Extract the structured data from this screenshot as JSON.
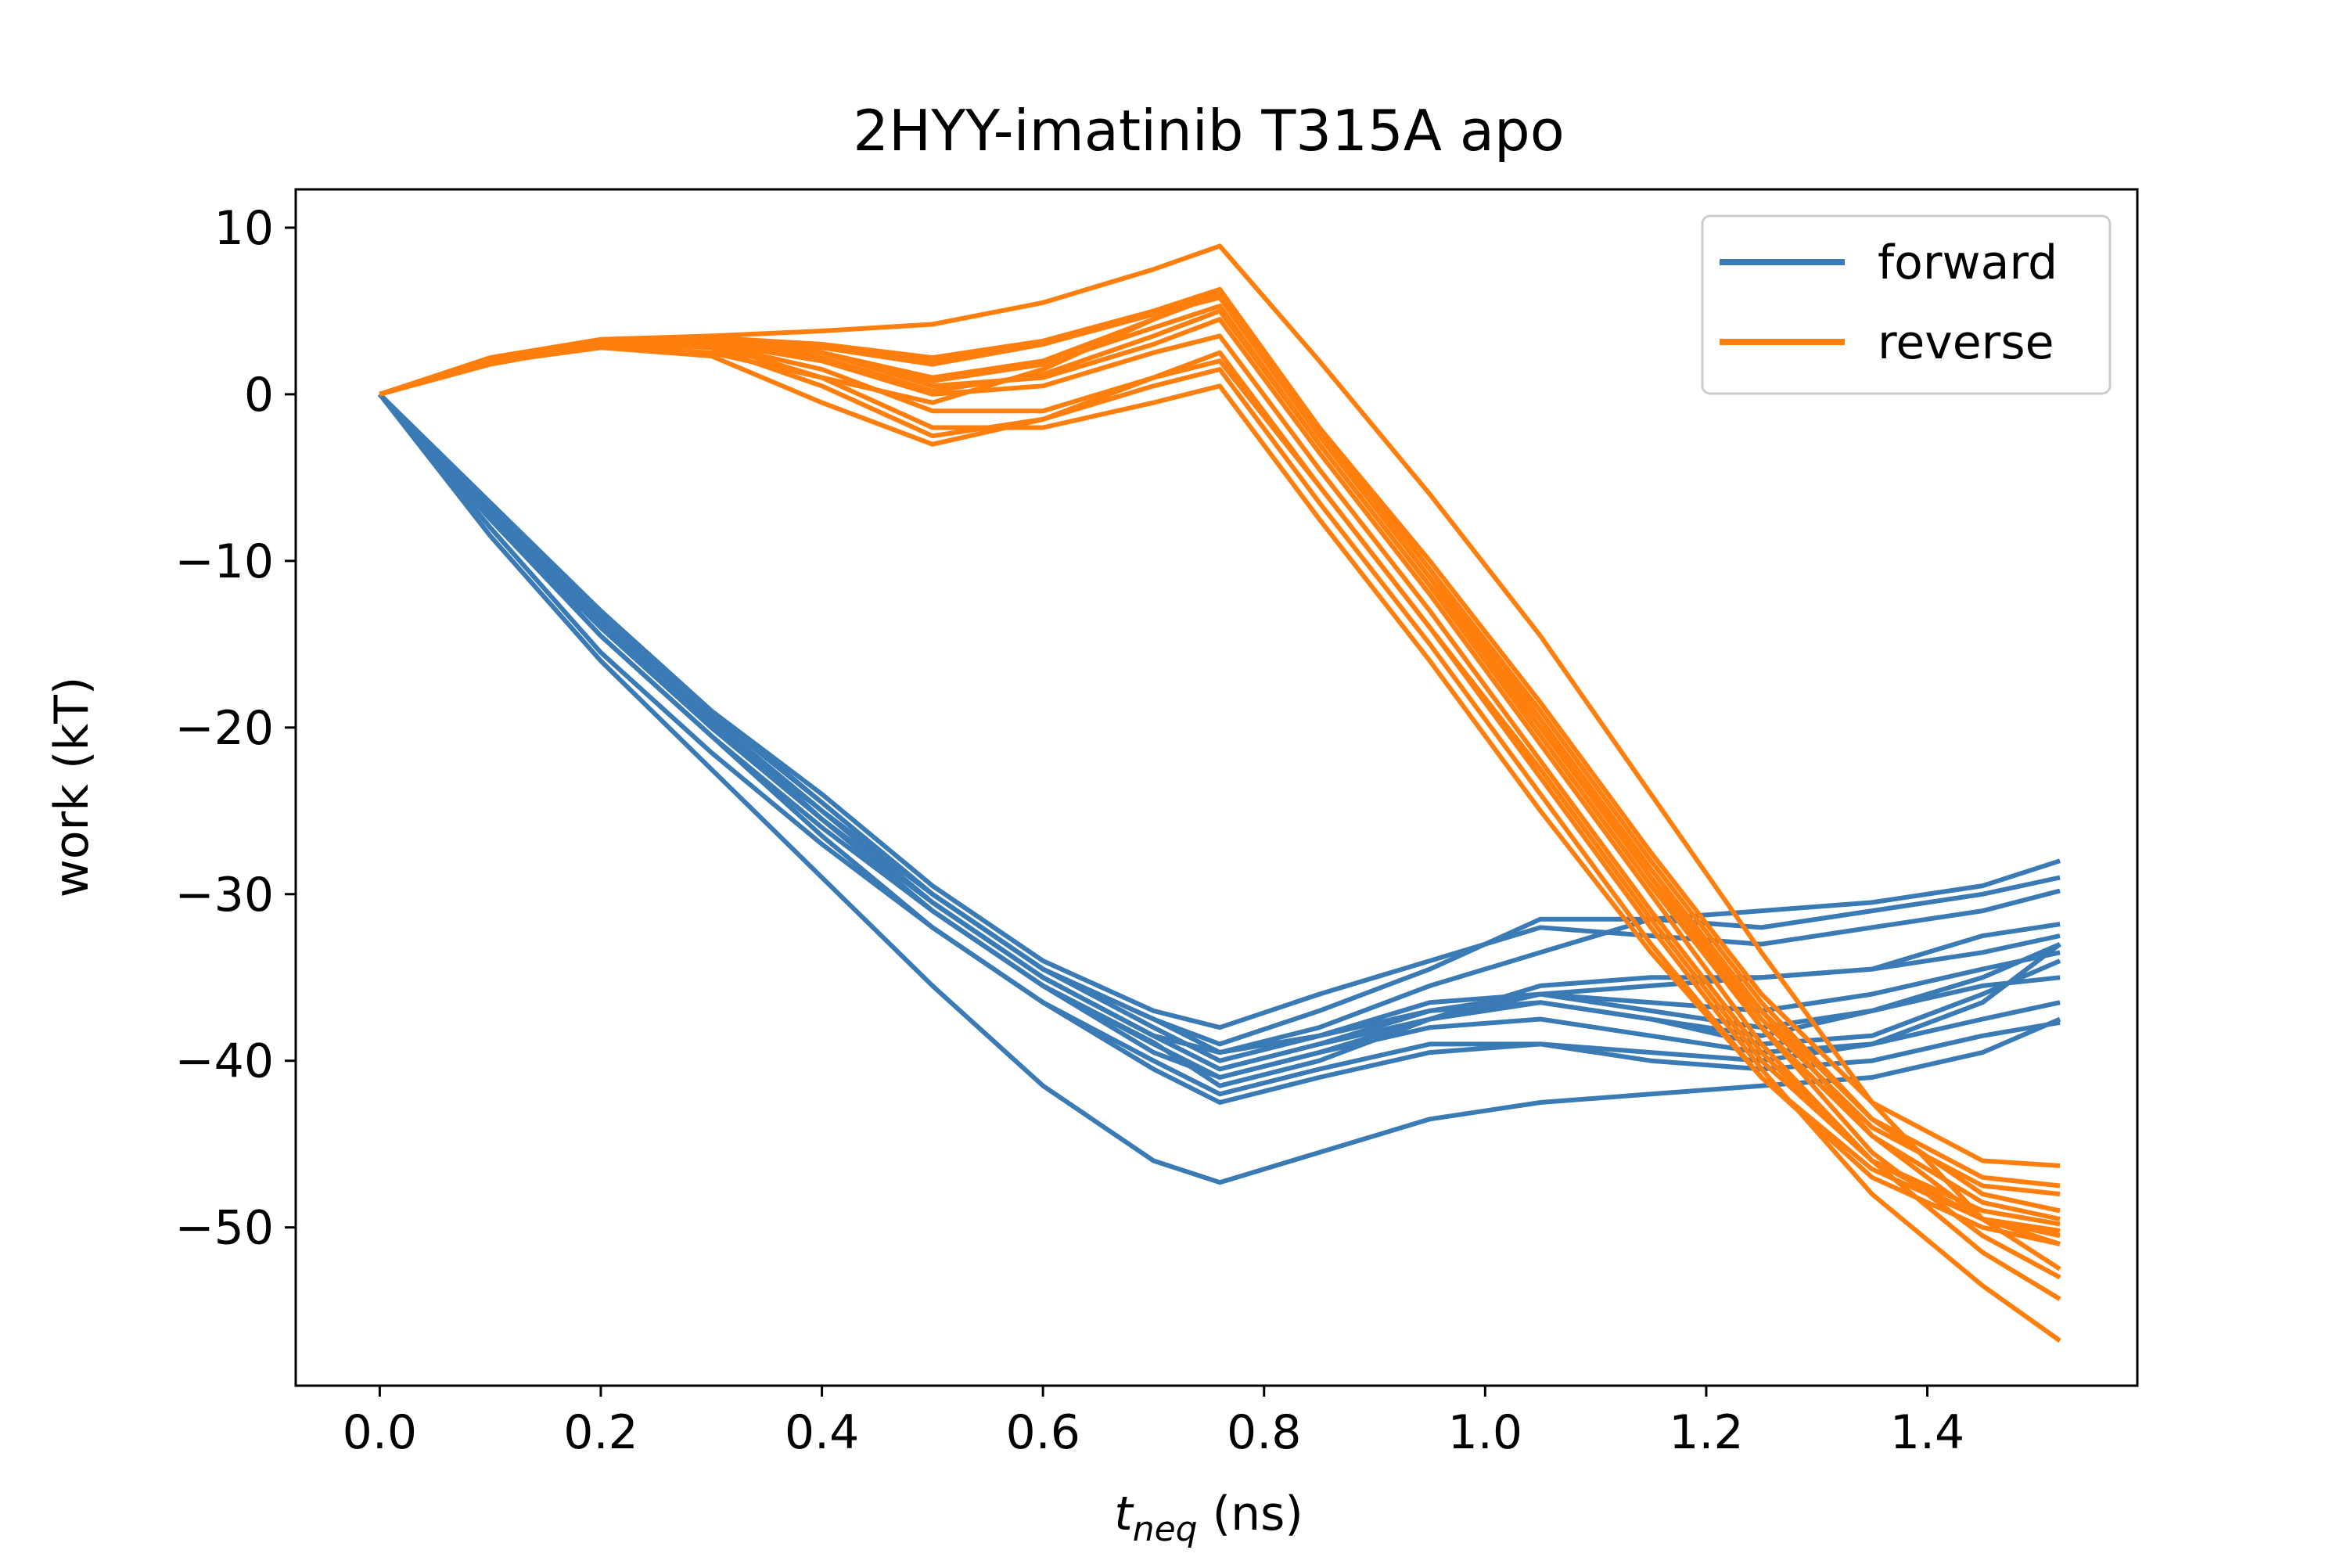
{
  "chart_data": {
    "type": "line",
    "title": "2HYY-imatinib T315A apo",
    "xlabel_main": "t",
    "xlabel_sub": "neq",
    "xlabel_suffix": " (ns)",
    "ylabel": "work (kT)",
    "xlim": [
      -0.076,
      1.59
    ],
    "ylim": [
      -59.5,
      12.3
    ],
    "xticks": [
      0.0,
      0.2,
      0.4,
      0.6,
      0.8,
      1.0,
      1.2,
      1.4
    ],
    "xtick_labels": [
      "0.0",
      "0.2",
      "0.4",
      "0.6",
      "0.8",
      "1.0",
      "1.2",
      "1.4"
    ],
    "yticks": [
      10,
      0,
      -10,
      -20,
      -30,
      -40,
      -50
    ],
    "ytick_labels": [
      "10",
      "0",
      "−10",
      "−20",
      "−30",
      "−40",
      "−50"
    ],
    "grid": false,
    "legend_position": "top-right",
    "legend": [
      {
        "label": "forward",
        "color": "#3a7ab5"
      },
      {
        "label": "reverse",
        "color": "#ff7f0e"
      }
    ],
    "x": [
      0.0,
      0.1,
      0.2,
      0.3,
      0.4,
      0.5,
      0.6,
      0.7,
      0.76,
      0.85,
      0.95,
      1.05,
      1.15,
      1.25,
      1.35,
      1.45,
      1.52
    ],
    "forward": [
      [
        0,
        -7.5,
        -14.5,
        -20.5,
        -26,
        -31,
        -35.5,
        -38.9,
        -41.5,
        -40.0,
        -37.5,
        -36.0,
        -35.5,
        -35.0,
        -34.5,
        -33.5,
        -32.5
      ],
      [
        0,
        -7.0,
        -13.5,
        -19.5,
        -25,
        -30.5,
        -35.0,
        -38.5,
        -40.5,
        -39.0,
        -37.0,
        -36.0,
        -37.0,
        -38.0,
        -37.0,
        -35.0,
        -33.0
      ],
      [
        0,
        -6.5,
        -13.0,
        -19.0,
        -24.5,
        -30.0,
        -34.5,
        -37.5,
        -39.5,
        -38.5,
        -36.5,
        -36.0,
        -36.5,
        -37.0,
        -36.0,
        -34.5,
        -33.5
      ],
      [
        0,
        -7.5,
        -14.0,
        -20.0,
        -25.5,
        -31.0,
        -35.5,
        -39.5,
        -41.0,
        -39.5,
        -37.5,
        -36.5,
        -37.5,
        -39.0,
        -38.5,
        -36.0,
        -34.0
      ],
      [
        0,
        -7.0,
        -13.5,
        -19.5,
        -25.0,
        -30.0,
        -34.5,
        -38.0,
        -40.0,
        -38.5,
        -37.0,
        -36.5,
        -37.5,
        -38.5,
        -37.0,
        -35.5,
        -35.0
      ],
      [
        0,
        -7.0,
        -13.5,
        -19.5,
        -25.5,
        -31.0,
        -35.5,
        -39.0,
        -41.0,
        -39.5,
        -38.0,
        -37.5,
        -38.5,
        -39.5,
        -39.0,
        -37.5,
        -36.5
      ],
      [
        0,
        -7.5,
        -14.5,
        -20.5,
        -26.5,
        -32.0,
        -36.5,
        -40.0,
        -42.0,
        -40.5,
        -39.0,
        -39.0,
        -40.0,
        -40.5,
        -40.0,
        -38.5,
        -37.7
      ],
      [
        0,
        -7.0,
        -13.0,
        -19.0,
        -24.0,
        -29.5,
        -34.0,
        -37.0,
        -38.0,
        -36.0,
        -34.0,
        -32.0,
        -32.5,
        -33.0,
        -32.0,
        -31.0,
        -29.8
      ],
      [
        0,
        -6.8,
        -13.2,
        -19.2,
        -24.5,
        -30.0,
        -34.5,
        -37.5,
        -39.0,
        -37.0,
        -34.5,
        -31.5,
        -31.5,
        -32.0,
        -31.0,
        -30.0,
        -29.0
      ],
      [
        0,
        -7.2,
        -13.8,
        -19.8,
        -25.0,
        -30.5,
        -35.0,
        -38.5,
        -39.5,
        -38.0,
        -35.5,
        -33.5,
        -31.5,
        -31.0,
        -30.5,
        -29.5,
        -28.0
      ],
      [
        0,
        -7.3,
        -14.0,
        -20.0,
        -25.5,
        -30.5,
        -35.0,
        -38.5,
        -40.5,
        -39.0,
        -37.5,
        -35.5,
        -35.0,
        -35.0,
        -34.5,
        -32.5,
        -31.8
      ],
      [
        0,
        -8.5,
        -16.0,
        -22.5,
        -29.0,
        -35.5,
        -41.5,
        -46.0,
        -47.3,
        -45.5,
        -43.5,
        -42.5,
        -42.0,
        -41.5,
        -41.0,
        -39.5,
        -37.5
      ],
      [
        0,
        -8.0,
        -15.5,
        -21.5,
        -27.0,
        -32.0,
        -36.5,
        -40.5,
        -42.5,
        -41.0,
        -39.5,
        -39.0,
        -39.5,
        -40.0,
        -39.0,
        -36.5,
        -33.0
      ]
    ],
    "reverse": [
      [
        0,
        1.8,
        3.0,
        3.5,
        3.8,
        4.2,
        5.5,
        7.5,
        8.9,
        2.0,
        -6.0,
        -14.5,
        -24.0,
        -33.5,
        -42.5,
        -49.5,
        -52.5
      ],
      [
        0,
        2.0,
        3.2,
        3.0,
        1.0,
        -0.5,
        1.5,
        4.5,
        6.2,
        -2.0,
        -10.5,
        -19.5,
        -29.0,
        -38.0,
        -45.5,
        -50.5,
        -53.0
      ],
      [
        0,
        2.0,
        3.0,
        3.2,
        2.5,
        1.0,
        2.0,
        4.5,
        6.0,
        -2.5,
        -11.0,
        -20.0,
        -29.0,
        -37.0,
        -44.5,
        -49.5,
        -51.0
      ],
      [
        0,
        2.2,
        3.3,
        3.5,
        2.5,
        0.5,
        1.0,
        3.0,
        4.5,
        -3.5,
        -12.0,
        -21.0,
        -30.0,
        -39.0,
        -46.0,
        -51.5,
        -54.3
      ],
      [
        0,
        2.1,
        3.1,
        3.0,
        1.5,
        -1.0,
        -1.0,
        1.0,
        2.0,
        -5.5,
        -14.0,
        -23.0,
        -32.0,
        -40.5,
        -48.0,
        -53.5,
        -56.8
      ],
      [
        0,
        1.9,
        2.8,
        2.5,
        1.0,
        -2.0,
        -2.0,
        -0.5,
        0.5,
        -7.5,
        -16.0,
        -25.0,
        -33.5,
        -41.0,
        -46.5,
        -49.5,
        -50.2
      ],
      [
        0,
        2.0,
        3.0,
        2.8,
        0.5,
        -2.5,
        -1.5,
        1.0,
        2.5,
        -5.5,
        -14.0,
        -22.5,
        -31.5,
        -40.0,
        -46.0,
        -49.0,
        -49.8
      ],
      [
        0,
        2.0,
        2.8,
        2.3,
        -0.5,
        -3.0,
        -1.5,
        0.5,
        1.5,
        -6.5,
        -15.0,
        -24.0,
        -33.0,
        -41.0,
        -47.0,
        -50.0,
        -51.0
      ],
      [
        0,
        2.1,
        3.2,
        3.4,
        2.8,
        1.8,
        3.0,
        5.0,
        6.3,
        -2.0,
        -10.0,
        -18.5,
        -27.5,
        -36.0,
        -42.5,
        -46.0,
        -46.3
      ],
      [
        0,
        2.0,
        3.0,
        3.3,
        2.2,
        0.2,
        1.2,
        3.5,
        5.0,
        -3.0,
        -11.5,
        -20.0,
        -29.0,
        -37.5,
        -44.0,
        -47.5,
        -48.0
      ],
      [
        0,
        1.9,
        2.9,
        3.2,
        2.8,
        2.0,
        3.0,
        4.8,
        5.8,
        -2.5,
        -11.0,
        -19.5,
        -28.5,
        -37.0,
        -43.5,
        -47.0,
        -47.5
      ],
      [
        0,
        2.0,
        3.1,
        3.4,
        3.0,
        2.2,
        3.2,
        5.0,
        6.0,
        -2.2,
        -10.5,
        -19.0,
        -28.0,
        -36.5,
        -43.5,
        -48.0,
        -49.0
      ],
      [
        0,
        2.0,
        3.1,
        3.3,
        2.5,
        0.8,
        1.8,
        4.0,
        5.3,
        -3.0,
        -11.5,
        -20.5,
        -29.5,
        -38.0,
        -44.5,
        -48.5,
        -49.5
      ],
      [
        0,
        2.0,
        3.0,
        3.1,
        2.0,
        0.0,
        0.5,
        2.5,
        3.5,
        -4.5,
        -13.0,
        -22.0,
        -31.0,
        -39.5,
        -46.0,
        -49.5,
        -50.5
      ]
    ]
  }
}
